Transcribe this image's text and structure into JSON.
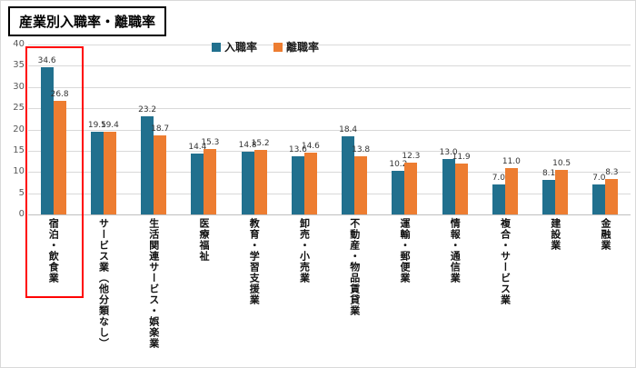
{
  "title": "産業別入職率・離職率",
  "chart_data": {
    "type": "bar",
    "title": "産業別入職率・離職率",
    "categories": [
      "宿泊・飲食業",
      "サービス業（他分類なし）",
      "生活関連サービス・娯楽業",
      "医療福祉",
      "教育・学習支援業",
      "卸売・小売業",
      "不動産・物品賃貸業",
      "運輸・郵便業",
      "情報・通信業",
      "複合・サービス業",
      "建設業",
      "金融業"
    ],
    "series": [
      {
        "name": "入職率",
        "color": "#21708E",
        "values": [
          34.6,
          19.5,
          23.2,
          14.4,
          14.8,
          13.6,
          18.4,
          10.2,
          13.0,
          7.0,
          8.1,
          7.0
        ]
      },
      {
        "name": "離職率",
        "color": "#ED7D31",
        "values": [
          26.8,
          19.4,
          18.7,
          15.3,
          15.2,
          14.6,
          13.8,
          12.3,
          11.9,
          11.0,
          10.5,
          8.3
        ]
      }
    ],
    "ylim": [
      0,
      40
    ],
    "yticks": [
      0,
      5,
      10,
      15,
      20,
      25,
      30,
      35,
      40
    ],
    "grid": true,
    "legend_position": "top",
    "value_labels": true,
    "highlight": {
      "category": "宿泊・飲食業",
      "category_index": 0,
      "color": "#FF0000"
    }
  }
}
